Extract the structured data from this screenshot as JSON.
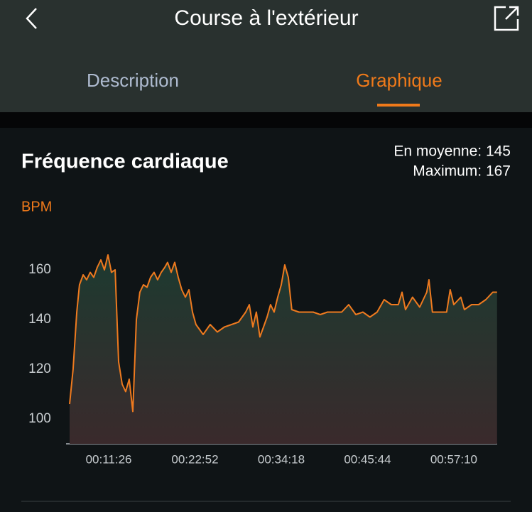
{
  "header": {
    "title": "Course à l'extérieur"
  },
  "tabs": [
    "Description",
    "Graphique"
  ],
  "chart_data": {
    "type": "line",
    "title": "Fréquence cardiaque",
    "stats": [
      "En moyenne: 145",
      "Maximum: 167"
    ],
    "y_label": "BPM",
    "x": [
      375,
      403,
      432,
      454,
      483,
      511,
      539,
      567,
      595,
      624,
      652,
      680,
      708,
      737,
      765,
      793,
      821,
      849,
      878,
      906,
      934,
      962,
      991,
      1019,
      1047,
      1075,
      1104,
      1132,
      1154,
      1183,
      1211,
      1239,
      1267,
      1296,
      1324,
      1352,
      1380,
      1437,
      1493,
      1550,
      1606,
      1663,
      1719,
      1775,
      1804,
      1832,
      1860,
      1888,
      1917,
      1945,
      1973,
      2001,
      2030,
      2058,
      2086,
      2114,
      2142,
      2199,
      2255,
      2312,
      2368,
      2425,
      2481,
      2538,
      2594,
      2651,
      2707,
      2763,
      2820,
      2876,
      2933,
      2989,
      3018,
      3046,
      3102,
      3159,
      3215,
      3232,
      3260,
      3317,
      3373,
      3401,
      3430,
      3486,
      3514,
      3571,
      3627,
      3684,
      3740,
      3774
    ],
    "series": [
      {
        "name": "BPM",
        "color": "#ee7a1f",
        "values": [
          106,
          120,
          143,
          154,
          158,
          156,
          159,
          157,
          161,
          164,
          160,
          166,
          159,
          160,
          123,
          114,
          111,
          116,
          103,
          140,
          151,
          154,
          153,
          157,
          159,
          156,
          159,
          161,
          163,
          159,
          163,
          157,
          152,
          149,
          152,
          143,
          138,
          134,
          138,
          135,
          137,
          138,
          139,
          143,
          146,
          137,
          143,
          133,
          137,
          141,
          146,
          143,
          149,
          154,
          162,
          157,
          144,
          143,
          143,
          143,
          142,
          143,
          143,
          143,
          146,
          142,
          143,
          141,
          143,
          148,
          146,
          146,
          151,
          144,
          149,
          145,
          151,
          156,
          143,
          143,
          143,
          152,
          146,
          149,
          144,
          146,
          146,
          148,
          151,
          151
        ]
      }
    ],
    "xlim": [
      347,
      3775
    ],
    "xticks": [
      {
        "value": 686,
        "label": "00:11:26"
      },
      {
        "value": 1372,
        "label": "00:22:52"
      },
      {
        "value": 2058,
        "label": "00:34:18"
      },
      {
        "value": 2744,
        "label": "00:45:44"
      },
      {
        "value": 3430,
        "label": "00:57:10"
      }
    ],
    "ylim": [
      90,
      170
    ],
    "yticks": [
      100,
      120,
      140,
      160
    ],
    "grid": false
  }
}
